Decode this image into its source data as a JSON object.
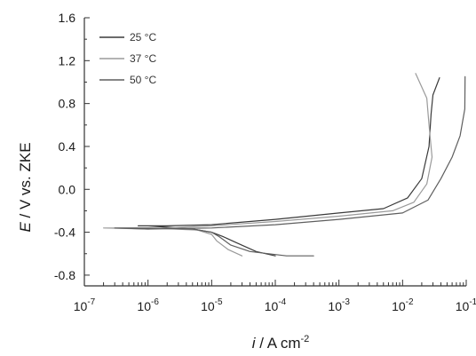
{
  "chart_data": {
    "type": "line",
    "title": "",
    "xlabel": {
      "italic": "i",
      "text": " / A cm",
      "sup": "-2"
    },
    "ylabel": {
      "italic": "E",
      "text": " / V vs. ZKE"
    },
    "xscale": "log",
    "xlim": [
      1e-07,
      0.1
    ],
    "ylim": [
      -0.9,
      1.6
    ],
    "x_ticks": [
      {
        "value": 1e-07,
        "base": "10",
        "exp": "-7"
      },
      {
        "value": 1e-06,
        "base": "10",
        "exp": "-6"
      },
      {
        "value": 1e-05,
        "base": "10",
        "exp": "-5"
      },
      {
        "value": 0.0001,
        "base": "10",
        "exp": "-4"
      },
      {
        "value": 0.001,
        "base": "10",
        "exp": "-3"
      },
      {
        "value": 0.01,
        "base": "10",
        "exp": "-2"
      },
      {
        "value": 0.1,
        "base": "10",
        "exp": "-1"
      }
    ],
    "y_ticks": [
      {
        "value": 1.6,
        "label": "1.6"
      },
      {
        "value": 1.2,
        "label": "1.2"
      },
      {
        "value": 0.8,
        "label": "0.8"
      },
      {
        "value": 0.4,
        "label": "0.4"
      },
      {
        "value": 0.0,
        "label": "0.0"
      },
      {
        "value": -0.4,
        "label": "-0.4"
      },
      {
        "value": -0.8,
        "label": "-0.8"
      }
    ],
    "grid": false,
    "legend_position": "top-left",
    "series": [
      {
        "name": "25 °C",
        "color": "#3a3a3a",
        "points": [
          [
            0.0001,
            -0.62
          ],
          [
            5e-05,
            -0.58
          ],
          [
            2.5e-05,
            -0.5
          ],
          [
            1.5e-05,
            -0.44
          ],
          [
            1e-05,
            -0.4
          ],
          [
            5e-06,
            -0.37
          ],
          [
            1e-06,
            -0.34
          ],
          [
            7e-07,
            -0.34
          ],
          [
            2e-06,
            -0.34
          ],
          [
            1e-05,
            -0.33
          ],
          [
            0.0001,
            -0.28
          ],
          [
            0.001,
            -0.22
          ],
          [
            0.005,
            -0.18
          ],
          [
            0.012,
            -0.08
          ],
          [
            0.02,
            0.1
          ],
          [
            0.026,
            0.4
          ],
          [
            0.028,
            0.7
          ],
          [
            0.03,
            0.88
          ],
          [
            0.038,
            1.04
          ]
        ]
      },
      {
        "name": "37 °C",
        "color": "#9a9a9a",
        "points": [
          [
            3e-05,
            -0.62
          ],
          [
            1.8e-05,
            -0.56
          ],
          [
            1.2e-05,
            -0.48
          ],
          [
            1e-05,
            -0.42
          ],
          [
            6e-06,
            -0.38
          ],
          [
            1e-06,
            -0.36
          ],
          [
            2e-07,
            -0.36
          ],
          [
            1e-06,
            -0.37
          ],
          [
            1e-05,
            -0.34
          ],
          [
            0.0001,
            -0.3
          ],
          [
            0.001,
            -0.25
          ],
          [
            0.007,
            -0.2
          ],
          [
            0.015,
            -0.12
          ],
          [
            0.024,
            0.05
          ],
          [
            0.029,
            0.3
          ],
          [
            0.026,
            0.6
          ],
          [
            0.024,
            0.85
          ],
          [
            0.016,
            1.08
          ]
        ]
      },
      {
        "name": "50 °C",
        "color": "#5e5e5e",
        "points": [
          [
            0.0004,
            -0.62
          ],
          [
            0.00015,
            -0.62
          ],
          [
            4e-05,
            -0.58
          ],
          [
            2e-05,
            -0.52
          ],
          [
            1.3e-05,
            -0.44
          ],
          [
            1e-05,
            -0.4
          ],
          [
            5e-06,
            -0.37
          ],
          [
            1e-06,
            -0.36
          ],
          [
            3e-07,
            -0.36
          ],
          [
            1e-06,
            -0.37
          ],
          [
            1e-05,
            -0.36
          ],
          [
            0.0001,
            -0.33
          ],
          [
            0.001,
            -0.28
          ],
          [
            0.01,
            -0.22
          ],
          [
            0.025,
            -0.1
          ],
          [
            0.04,
            0.1
          ],
          [
            0.06,
            0.3
          ],
          [
            0.08,
            0.5
          ],
          [
            0.095,
            0.75
          ],
          [
            0.096,
            1.05
          ]
        ]
      }
    ]
  }
}
